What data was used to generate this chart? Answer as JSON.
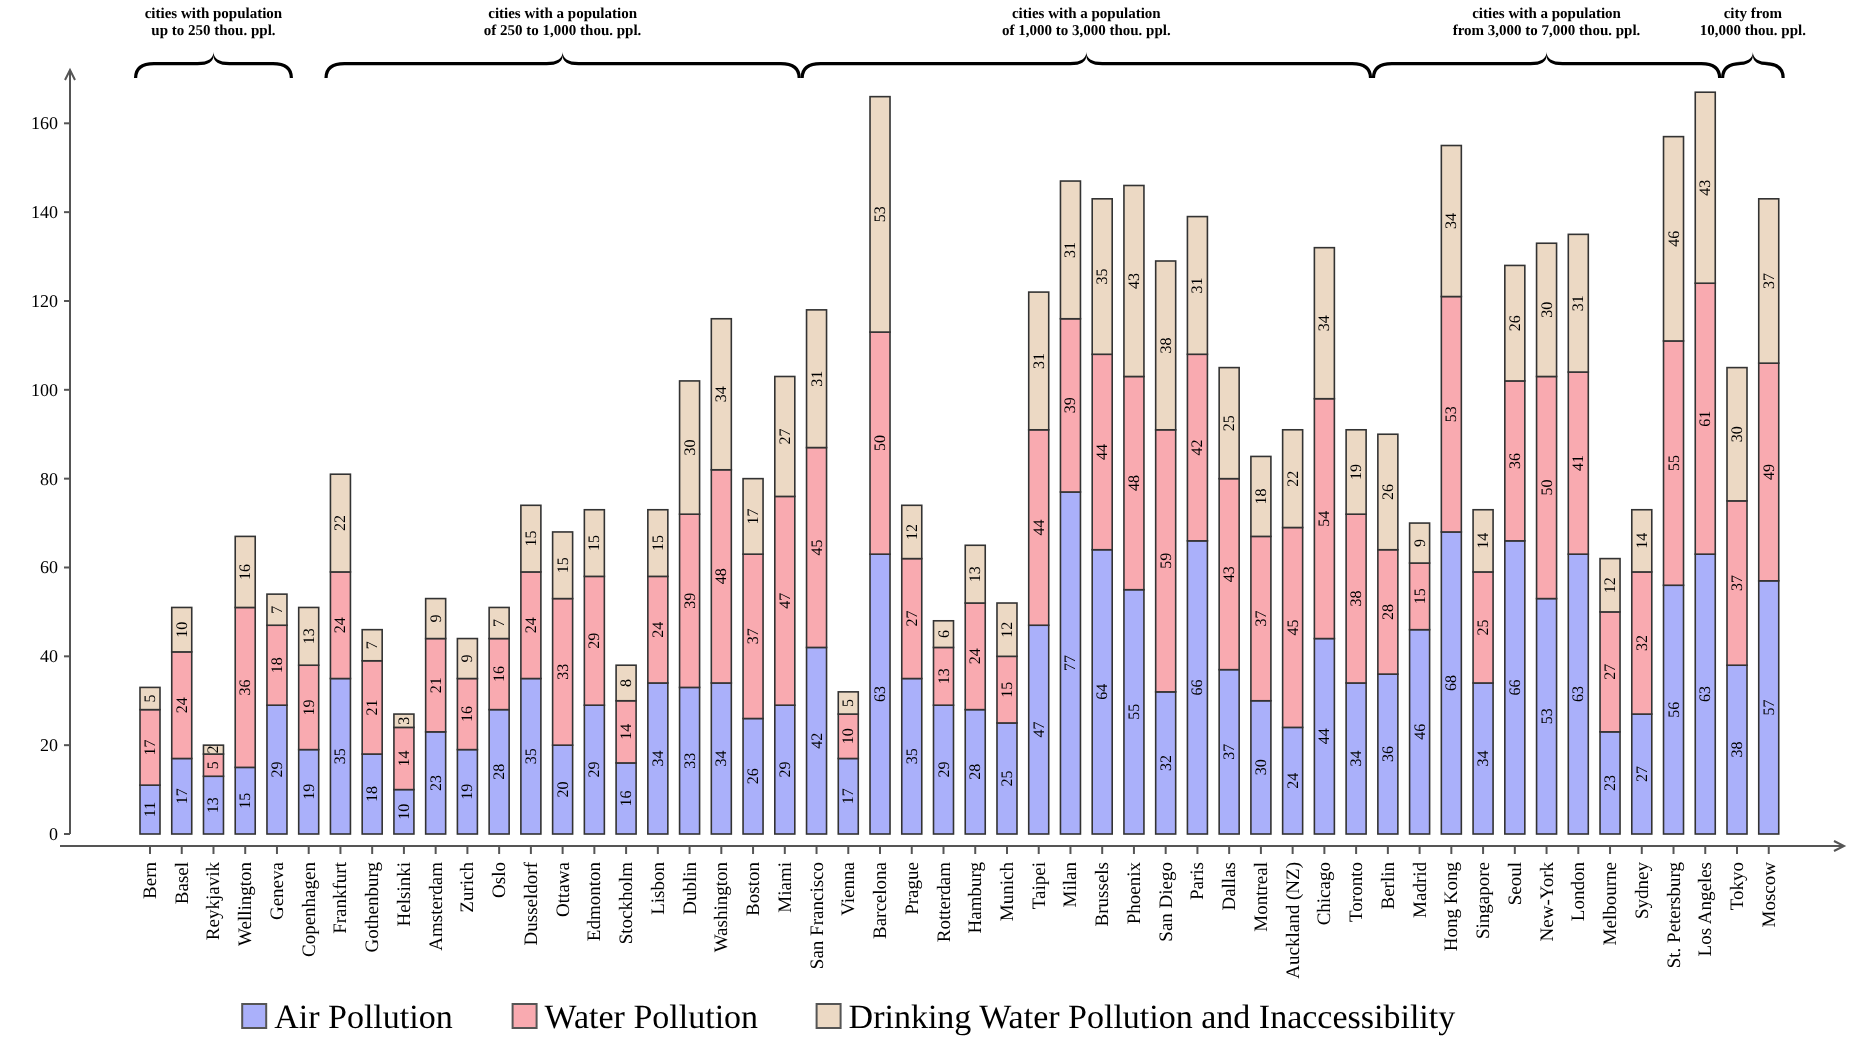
{
  "chart_data": {
    "type": "bar",
    "stacked": true,
    "data_labels": true,
    "grid": false,
    "legend": "bottom",
    "categories": [
      "Bern",
      "Basel",
      "Reykjavik",
      "Wellington",
      "Geneva",
      "Copenhagen",
      "Frankfurt",
      "Gothenburg",
      "Helsinki",
      "Amsterdam",
      "Zurich",
      "Oslo",
      "Dusseldorf",
      "Ottawa",
      "Edmonton",
      "Stockholm",
      "Lisbon",
      "Dublin",
      "Washington",
      "Boston",
      "Miami",
      "San Francisco",
      "Vienna",
      "Barcelona",
      "Prague",
      "Rotterdam",
      "Hamburg",
      "Munich",
      "Taipei",
      "Milan",
      "Brussels",
      "Phoenix",
      "San Diego",
      "Paris",
      "Dallas",
      "Montreal",
      "Auckland (NZ)",
      "Chicago",
      "Toronto",
      "Berlin",
      "Madrid",
      "Hong Kong",
      "Singapore",
      "Seoul",
      "New-York",
      "London",
      "Melbourne",
      "Sydney",
      "St. Petersburg",
      "Los Angeles",
      "Tokyo",
      "Moscow"
    ],
    "series": [
      {
        "name": "Air Pollution",
        "color": "#aab0fa",
        "values": [
          11,
          17,
          13,
          15,
          29,
          19,
          35,
          18,
          10,
          23,
          19,
          28,
          35,
          20,
          29,
          16,
          34,
          33,
          34,
          26,
          29,
          42,
          17,
          63,
          35,
          29,
          28,
          25,
          47,
          77,
          64,
          55,
          32,
          66,
          37,
          30,
          24,
          44,
          34,
          36,
          46,
          68,
          34,
          66,
          53,
          63,
          23,
          27,
          56,
          63,
          38,
          57
        ]
      },
      {
        "name": "Water Pollution",
        "color": "#f9aab0",
        "values": [
          17,
          24,
          5,
          36,
          18,
          19,
          24,
          21,
          14,
          21,
          16,
          16,
          24,
          33,
          29,
          14,
          24,
          39,
          48,
          37,
          47,
          45,
          10,
          50,
          27,
          13,
          24,
          15,
          44,
          39,
          44,
          48,
          59,
          42,
          43,
          37,
          45,
          54,
          38,
          28,
          15,
          53,
          25,
          36,
          50,
          41,
          27,
          32,
          55,
          61,
          37,
          49
        ]
      },
      {
        "name": "Drinking Water Pollution and Inaccessibility",
        "color": "#ecd9c4",
        "values": [
          5,
          10,
          2,
          16,
          7,
          13,
          22,
          7,
          3,
          9,
          9,
          7,
          15,
          15,
          15,
          8,
          15,
          30,
          34,
          17,
          27,
          31,
          5,
          53,
          12,
          6,
          13,
          12,
          31,
          31,
          35,
          43,
          38,
          31,
          25,
          18,
          22,
          34,
          19,
          26,
          9,
          34,
          14,
          26,
          30,
          31,
          12,
          14,
          46,
          43,
          30,
          37
        ]
      }
    ],
    "ylim": [
      0,
      172
    ],
    "yticks": [
      0,
      20,
      40,
      60,
      80,
      100,
      120,
      140,
      160
    ],
    "annotations": [
      "cities with population\nup to 250 thou. ppl.",
      "cities with a population\nof 250 to 1,000 thou. ppl.",
      "cities with a population\nof 1,000 to 3,000 thou. ppl.",
      "cities with a population\nfrom 3,000 to 7,000 thou. ppl.",
      "city from\n10,000 thou. ppl."
    ]
  }
}
